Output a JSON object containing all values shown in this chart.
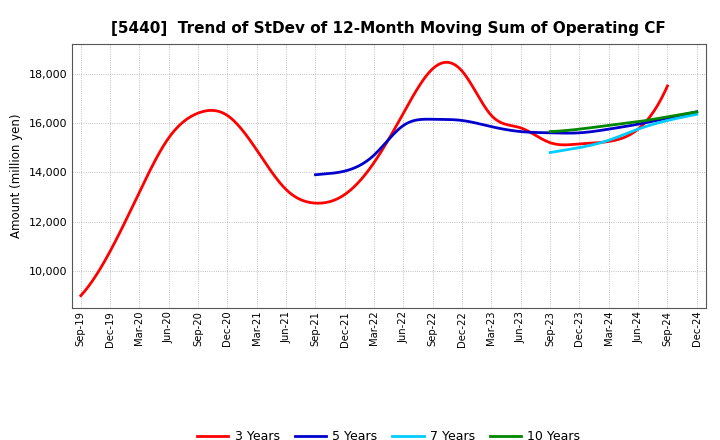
{
  "title": "[5440]  Trend of StDev of 12-Month Moving Sum of Operating CF",
  "ylabel": "Amount (million yen)",
  "background_color": "#ffffff",
  "grid_color": "#999999",
  "ylim": [
    8500,
    19200
  ],
  "yticks": [
    10000,
    12000,
    14000,
    16000,
    18000
  ],
  "legend_entries": [
    "3 Years",
    "5 Years",
    "7 Years",
    "10 Years"
  ],
  "legend_colors": [
    "#ff0000",
    "#0000cc",
    "#00ccff",
    "#008800"
  ],
  "x_labels": [
    "Sep-19",
    "Dec-19",
    "Mar-20",
    "Jun-20",
    "Sep-20",
    "Dec-20",
    "Mar-21",
    "Jun-21",
    "Sep-21",
    "Dec-21",
    "Mar-22",
    "Jun-22",
    "Sep-22",
    "Dec-22",
    "Mar-23",
    "Jun-23",
    "Sep-23",
    "Dec-23",
    "Mar-24",
    "Jun-24",
    "Sep-24",
    "Dec-24"
  ],
  "series_3yr": {
    "x": [
      0,
      1,
      2,
      3,
      4,
      5,
      6,
      7,
      8,
      9,
      10,
      11,
      12,
      13,
      14,
      15,
      16,
      17,
      18,
      19,
      20
    ],
    "y": [
      9000,
      10800,
      13200,
      15400,
      16400,
      16300,
      14900,
      13300,
      12750,
      13100,
      14400,
      16400,
      18200,
      18100,
      16300,
      15800,
      15200,
      15150,
      15250,
      15750,
      17500
    ]
  },
  "series_5yr": {
    "x": [
      8,
      9,
      10,
      11,
      12,
      13,
      14,
      15,
      16,
      17,
      18,
      19,
      20,
      21
    ],
    "y": [
      13900,
      14050,
      14700,
      15900,
      16150,
      16100,
      15850,
      15650,
      15600,
      15600,
      15750,
      15950,
      16200,
      16450
    ]
  },
  "series_7yr": {
    "x": [
      16,
      17,
      18,
      19,
      20,
      21
    ],
    "y": [
      14800,
      15000,
      15300,
      15750,
      16100,
      16350
    ]
  },
  "series_10yr": {
    "x": [
      16,
      17,
      18,
      19,
      20,
      21
    ],
    "y": [
      15650,
      15750,
      15900,
      16050,
      16250,
      16450
    ]
  }
}
